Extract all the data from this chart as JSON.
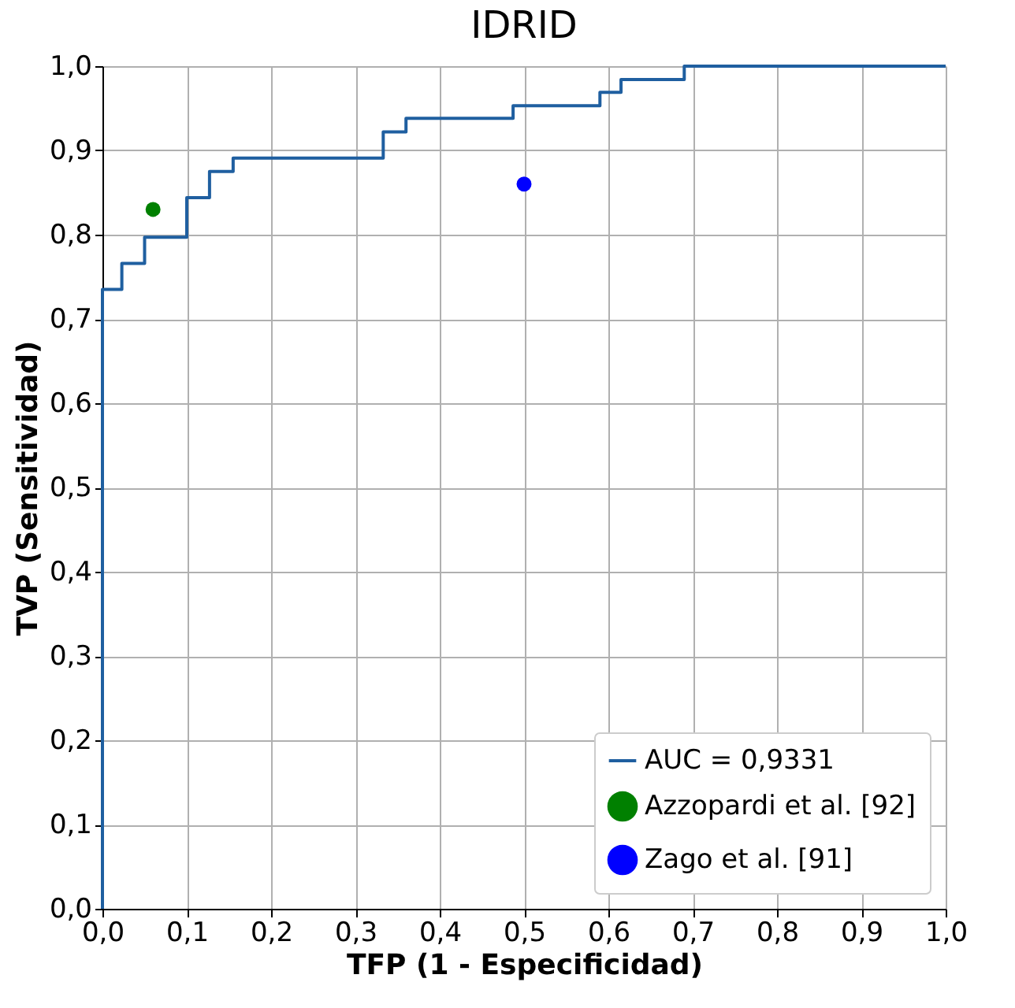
{
  "chart_data": {
    "type": "step",
    "title": "IDRID",
    "xlabel": "TFP (1 - Especificidad)",
    "ylabel": "TVP (Sensitividad)",
    "xlim": [
      0,
      1
    ],
    "ylim": [
      0,
      1
    ],
    "xticks": [
      {
        "value": 0,
        "label": "0,0"
      },
      {
        "value": 0.1,
        "label": "0,1"
      },
      {
        "value": 0.2,
        "label": "0,2"
      },
      {
        "value": 0.3,
        "label": "0,3"
      },
      {
        "value": 0.4,
        "label": "0,4"
      },
      {
        "value": 0.5,
        "label": "0,5"
      },
      {
        "value": 0.6,
        "label": "0,6"
      },
      {
        "value": 0.7,
        "label": "0,7"
      },
      {
        "value": 0.8,
        "label": "0,8"
      },
      {
        "value": 0.9,
        "label": "0,9"
      },
      {
        "value": 1,
        "label": "1,0"
      }
    ],
    "yticks": [
      {
        "value": 0,
        "label": "0,0"
      },
      {
        "value": 0.1,
        "label": "0,1"
      },
      {
        "value": 0.2,
        "label": "0,2"
      },
      {
        "value": 0.3,
        "label": "0,3"
      },
      {
        "value": 0.4,
        "label": "0,4"
      },
      {
        "value": 0.5,
        "label": "0,5"
      },
      {
        "value": 0.6,
        "label": "0,6"
      },
      {
        "value": 0.7,
        "label": "0,7"
      },
      {
        "value": 0.8,
        "label": "0,8"
      },
      {
        "value": 0.9,
        "label": "0,9"
      },
      {
        "value": 1,
        "label": "1,0"
      }
    ],
    "grid": true,
    "legend": "bottom right",
    "series": [
      {
        "name": "AUC = 0,9331",
        "color": "#1f5fa0",
        "x": [
          0,
          0,
          0.023,
          0.05,
          0.1,
          0.127,
          0.155,
          0.333,
          0.36,
          0.487,
          0.59,
          0.615,
          0.69,
          1.0
        ],
        "values": [
          0,
          0.735,
          0.766,
          0.797,
          0.844,
          0.875,
          0.891,
          0.922,
          0.938,
          0.953,
          0.969,
          0.984,
          1.0,
          1.0
        ]
      },
      {
        "name": "Azzopardi et al. [92]",
        "type": "scatter",
        "color": "#008000",
        "marker": "circle",
        "x": [
          0.06
        ],
        "values": [
          0.83
        ]
      },
      {
        "name": "Zago et al. [91]",
        "type": "scatter",
        "color": "#0000ff",
        "marker": "circle",
        "x": [
          0.5
        ],
        "values": [
          0.86
        ]
      }
    ]
  }
}
